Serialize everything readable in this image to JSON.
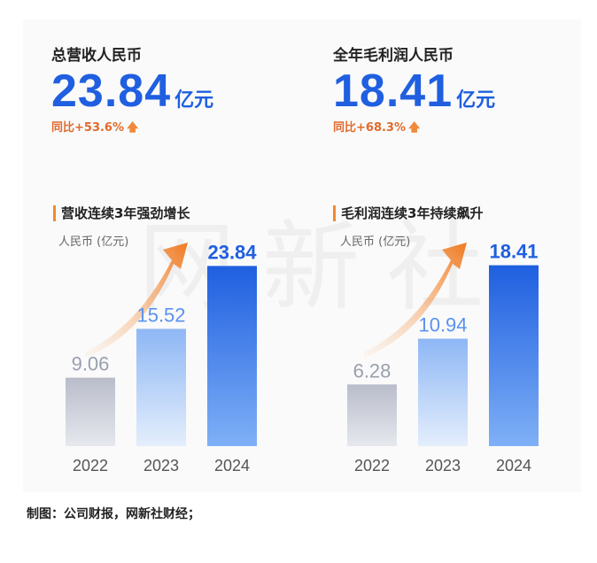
{
  "kpis": [
    {
      "label": "总营收人民币",
      "value": "23.84",
      "unit": "亿元",
      "yoy": "同比+53.6%"
    },
    {
      "label": "全年毛利润人民币",
      "value": "18.41",
      "unit": "亿元",
      "yoy": "同比+68.3%"
    }
  ],
  "watermark": "网新社",
  "caption": "制图：公司财报，网新社财经；",
  "colors": {
    "accent": "#1f5fe0",
    "yoy": "#e06a2c",
    "arrow": "#f28a2f"
  },
  "chart_data": [
    {
      "type": "bar",
      "title": "营收连续3年强劲增长",
      "ylabel": "人民币 (亿元)",
      "categories": [
        "2022",
        "2023",
        "2024"
      ],
      "values": [
        9.06,
        15.52,
        23.84
      ],
      "ylim": [
        0,
        26
      ]
    },
    {
      "type": "bar",
      "title": "毛利润连续3年持续飙升",
      "ylabel": "人民币 (亿元)",
      "categories": [
        "2022",
        "2023",
        "2024"
      ],
      "values": [
        6.28,
        10.94,
        18.41
      ],
      "ylim": [
        0,
        20
      ]
    }
  ]
}
